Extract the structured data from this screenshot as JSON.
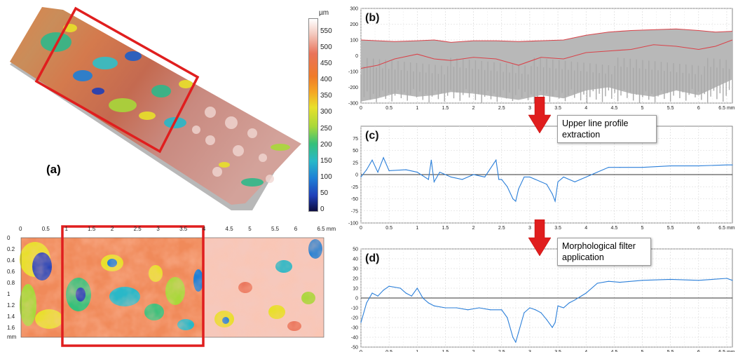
{
  "panel_a": {
    "label": "(a)",
    "unit": "µm",
    "scale_ticks": [
      "550",
      "500",
      "450",
      "400",
      "350",
      "300",
      "250",
      "200",
      "150",
      "100",
      "50",
      "0"
    ],
    "scale_colors": [
      "#ffffff",
      "#f3c8bd",
      "#e9735a",
      "#f07b28",
      "#f5a623",
      "#e8e02a",
      "#a8d83a",
      "#36c07a",
      "#29b8c8",
      "#1e7fd6",
      "#1f3fb8",
      "#0d0d40"
    ]
  },
  "map": {
    "x_ticks": [
      "0",
      "0.5",
      "1",
      "1.5",
      "2",
      "2.5",
      "3",
      "3.5",
      "4",
      "4.5",
      "5",
      "5.5",
      "6",
      "6.5 mm"
    ],
    "y_ticks": [
      "0",
      "0.2",
      "0.4",
      "0.6",
      "0.8",
      "1",
      "1.2",
      "1.4",
      "1.6"
    ],
    "y_unit": "mm"
  },
  "arrows": {
    "first": "Upper line profile extraction",
    "second": "Morphological filter application"
  },
  "chart_data": [
    {
      "type": "area",
      "label": "(b)",
      "xlim": [
        0,
        6.6
      ],
      "ylim": [
        -300,
        300
      ],
      "x_ticks": [
        "0",
        "0.5",
        "1",
        "1.5",
        "2",
        "2.5",
        "3",
        "3.5",
        "4",
        "4.5",
        "5",
        "5.5",
        "6",
        "6.5 mm"
      ],
      "y_ticks": [
        "300",
        "200",
        "100",
        "0",
        "-100",
        "-200",
        "-300"
      ],
      "series": [
        {
          "role": "upper",
          "color": "#d9434a",
          "x": [
            0,
            0.3,
            0.6,
            1,
            1.3,
            1.6,
            2,
            2.4,
            2.8,
            3.2,
            3.6,
            4,
            4.4,
            4.8,
            5.2,
            5.6,
            6,
            6.3,
            6.6
          ],
          "values": [
            100,
            95,
            90,
            95,
            100,
            85,
            95,
            95,
            90,
            95,
            100,
            130,
            150,
            160,
            165,
            170,
            160,
            150,
            155
          ]
        },
        {
          "role": "mean",
          "color": "#d9434a",
          "x": [
            0,
            0.3,
            0.6,
            1,
            1.3,
            1.6,
            2,
            2.4,
            2.8,
            3.2,
            3.6,
            4,
            4.4,
            4.8,
            5.2,
            5.6,
            6,
            6.3,
            6.6
          ],
          "values": [
            -80,
            -60,
            -20,
            10,
            -20,
            -30,
            -10,
            -20,
            -60,
            -10,
            -20,
            20,
            30,
            40,
            70,
            60,
            40,
            60,
            100
          ]
        },
        {
          "role": "lower",
          "color": "#b8b8b8",
          "x": [
            0,
            0.3,
            0.6,
            1,
            1.3,
            1.6,
            2,
            2.4,
            2.8,
            3.2,
            3.6,
            4,
            4.4,
            4.8,
            5.2,
            5.6,
            6,
            6.3,
            6.6
          ],
          "values": [
            -290,
            -270,
            -240,
            -260,
            -250,
            -230,
            -240,
            -260,
            -280,
            -250,
            -270,
            -220,
            -200,
            -240,
            -260,
            -220,
            -250,
            -200,
            -150
          ]
        }
      ]
    },
    {
      "type": "line",
      "label": "(c)",
      "xlim": [
        0,
        6.6
      ],
      "ylim": [
        -100,
        100
      ],
      "x_ticks": [
        "0",
        "0.5",
        "1",
        "1.5",
        "2",
        "2.5",
        "3",
        "3.5",
        "4",
        "4.5",
        "5",
        "5.5",
        "6",
        "6.5 mm"
      ],
      "y_ticks": [
        "75",
        "50",
        "25",
        "0",
        "-25",
        "-50",
        "-75",
        "-100"
      ],
      "series": [
        {
          "color": "#2b7fd9",
          "x": [
            0,
            0.1,
            0.2,
            0.3,
            0.4,
            0.5,
            0.8,
            1.0,
            1.2,
            1.25,
            1.3,
            1.4,
            1.6,
            1.8,
            2.0,
            2.2,
            2.4,
            2.45,
            2.5,
            2.6,
            2.7,
            2.75,
            2.8,
            2.9,
            3.0,
            3.1,
            3.3,
            3.4,
            3.45,
            3.5,
            3.6,
            3.8,
            4.0,
            4.2,
            4.4,
            4.6,
            5.0,
            5.5,
            6.0,
            6.5,
            6.6
          ],
          "values": [
            -5,
            10,
            30,
            5,
            35,
            8,
            10,
            5,
            -10,
            30,
            -15,
            5,
            -5,
            -10,
            0,
            -5,
            30,
            -10,
            -10,
            -25,
            -50,
            -55,
            -30,
            -5,
            -5,
            -10,
            -20,
            -40,
            -55,
            -15,
            -5,
            -15,
            -5,
            5,
            15,
            15,
            15,
            18,
            18,
            20,
            20
          ]
        }
      ]
    },
    {
      "type": "line",
      "label": "(d)",
      "xlim": [
        0,
        6.6
      ],
      "ylim": [
        -50,
        50
      ],
      "x_ticks": [
        "0",
        "0.5",
        "1",
        "1.5",
        "2",
        "2.5",
        "3",
        "3.5",
        "4",
        "4.5",
        "5",
        "5.5",
        "6",
        "6.5 mm"
      ],
      "y_ticks": [
        "50",
        "40",
        "30",
        "20",
        "10",
        "0",
        "-10",
        "-20",
        "-30",
        "-40",
        "-50"
      ],
      "series": [
        {
          "color": "#2b7fd9",
          "x": [
            0,
            0.1,
            0.2,
            0.3,
            0.4,
            0.5,
            0.7,
            0.8,
            0.9,
            1.0,
            1.1,
            1.2,
            1.3,
            1.5,
            1.7,
            1.9,
            2.1,
            2.3,
            2.5,
            2.6,
            2.7,
            2.75,
            2.8,
            2.9,
            3.0,
            3.1,
            3.2,
            3.3,
            3.4,
            3.45,
            3.5,
            3.6,
            3.7,
            3.8,
            4.0,
            4.2,
            4.4,
            4.6,
            5.0,
            5.5,
            6.0,
            6.5,
            6.6
          ],
          "values": [
            -25,
            -5,
            5,
            2,
            8,
            12,
            10,
            5,
            2,
            10,
            0,
            -5,
            -8,
            -10,
            -10,
            -12,
            -10,
            -12,
            -12,
            -20,
            -40,
            -45,
            -35,
            -15,
            -10,
            -12,
            -15,
            -22,
            -30,
            -25,
            -8,
            -10,
            -5,
            -2,
            5,
            15,
            17,
            16,
            18,
            19,
            18,
            20,
            18
          ]
        }
      ]
    }
  ]
}
